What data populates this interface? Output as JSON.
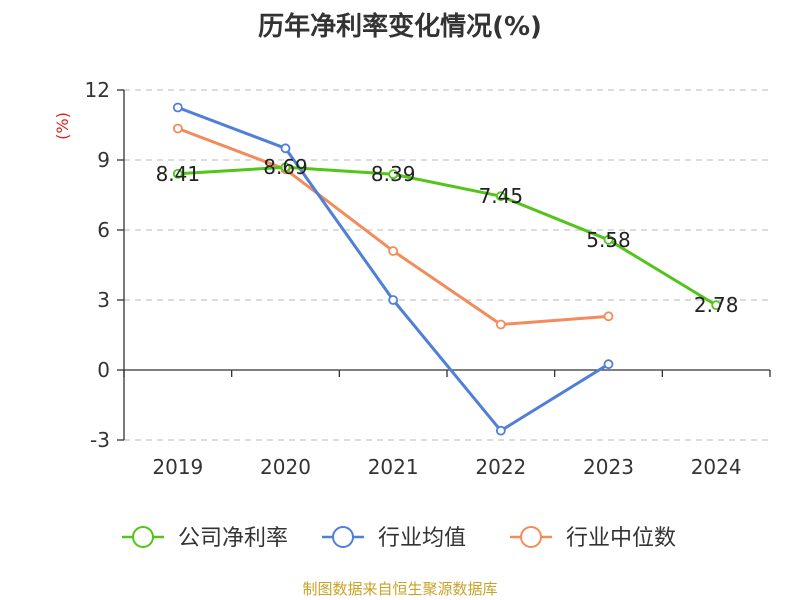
{
  "chart_data": {
    "type": "line",
    "title": "历年净利率变化情况(%)",
    "unit_label": "(%)",
    "unit_color": "#e0201b",
    "categories": [
      "2019",
      "2020",
      "2021",
      "2022",
      "2023",
      "2024"
    ],
    "ylim": [
      -3,
      12
    ],
    "yticks": [
      -3,
      0,
      3,
      6,
      9,
      12
    ],
    "grid": "horizontal-dashed",
    "legend_position": "bottom",
    "series": [
      {
        "name": "公司净利率",
        "color": "#52c41a",
        "values": [
          8.41,
          8.69,
          8.39,
          7.45,
          5.58,
          2.78
        ],
        "labels": [
          "8.41",
          "8.69",
          "8.39",
          "7.45",
          "5.58",
          "2.78"
        ]
      },
      {
        "name": "行业均值",
        "color": "#4f7fd9",
        "values": [
          11.25,
          9.5,
          3.0,
          -2.6,
          0.25,
          null
        ]
      },
      {
        "name": "行业中位数",
        "color": "#f28c5b",
        "values": [
          10.35,
          8.6,
          5.1,
          1.95,
          2.3,
          null
        ]
      }
    ]
  },
  "source_note": "制图数据来自恒生聚源数据库"
}
